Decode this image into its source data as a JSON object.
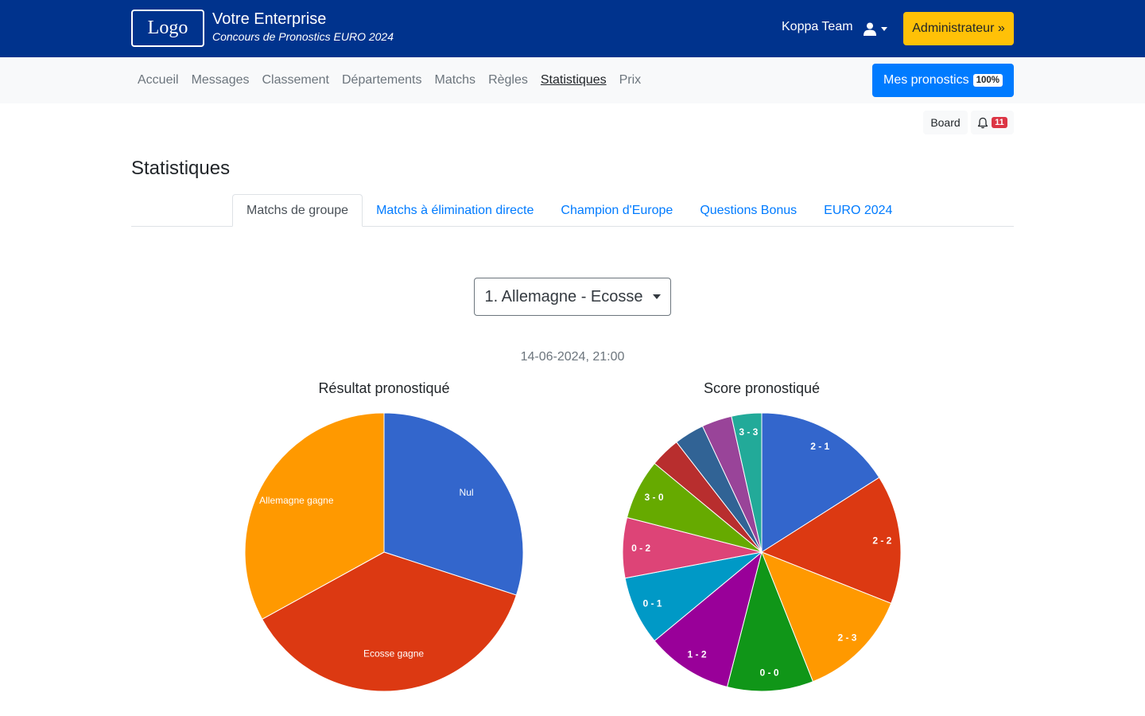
{
  "header": {
    "logo_text": "Logo",
    "company": "Votre Enterprise",
    "subtitle": "Concours de Pronostics EURO 2024",
    "team_name": "Koppa Team",
    "admin_label": "Administrateur »"
  },
  "nav": {
    "items": [
      {
        "label": "Accueil"
      },
      {
        "label": "Messages"
      },
      {
        "label": "Classement"
      },
      {
        "label": "Départements"
      },
      {
        "label": "Matchs"
      },
      {
        "label": "Règles"
      },
      {
        "label": "Statistiques",
        "active": true
      },
      {
        "label": "Prix"
      }
    ],
    "mes_pronostics_label": "Mes pronostics",
    "mes_pronostics_pct": "100%"
  },
  "toolbar": {
    "board_label": "Board",
    "notification_count": "11"
  },
  "page": {
    "title": "Statistiques",
    "tabs": [
      {
        "label": "Matchs de groupe",
        "active": true
      },
      {
        "label": "Matchs à élimination directe"
      },
      {
        "label": "Champion d'Europe"
      },
      {
        "label": "Questions Bonus"
      },
      {
        "label": "EURO 2024"
      }
    ],
    "match_selected": "1. Allemagne - Ecosse",
    "match_date": "14-06-2024, 21:00"
  },
  "colors": {
    "brand": "#00338d",
    "admin": "#ffc107",
    "primary": "#007bff",
    "badge": "#dc3545"
  },
  "chart_data": [
    {
      "type": "pie",
      "title": "Résultat pronostiqué",
      "slices": [
        {
          "label": "Nul",
          "value": 30,
          "color": "#3366cc"
        },
        {
          "label": "Ecosse gagne",
          "value": 37,
          "color": "#dc3912"
        },
        {
          "label": "Allemagne gagne",
          "value": 33,
          "color": "#ff9900"
        }
      ]
    },
    {
      "type": "pie",
      "title": "Score pronostiqué",
      "slices": [
        {
          "label": "2 - 1",
          "value": 16,
          "color": "#3366cc"
        },
        {
          "label": "2 - 2",
          "value": 15,
          "color": "#dc3912"
        },
        {
          "label": "2 - 3",
          "value": 13,
          "color": "#ff9900"
        },
        {
          "label": "0 - 0",
          "value": 10,
          "color": "#109618"
        },
        {
          "label": "1 - 2",
          "value": 10,
          "color": "#990099"
        },
        {
          "label": "0 - 1",
          "value": 8,
          "color": "#0099c6"
        },
        {
          "label": "0 - 2",
          "value": 7,
          "color": "#dd4477"
        },
        {
          "label": "3 - 0",
          "value": 7,
          "color": "#66aa00"
        },
        {
          "label": "",
          "value": 3.5,
          "color": "#b82e2e"
        },
        {
          "label": "",
          "value": 3.5,
          "color": "#316395"
        },
        {
          "label": "",
          "value": 3.5,
          "color": "#994499"
        },
        {
          "label": "3 - 3",
          "value": 3.5,
          "color": "#22aa99"
        }
      ]
    }
  ]
}
